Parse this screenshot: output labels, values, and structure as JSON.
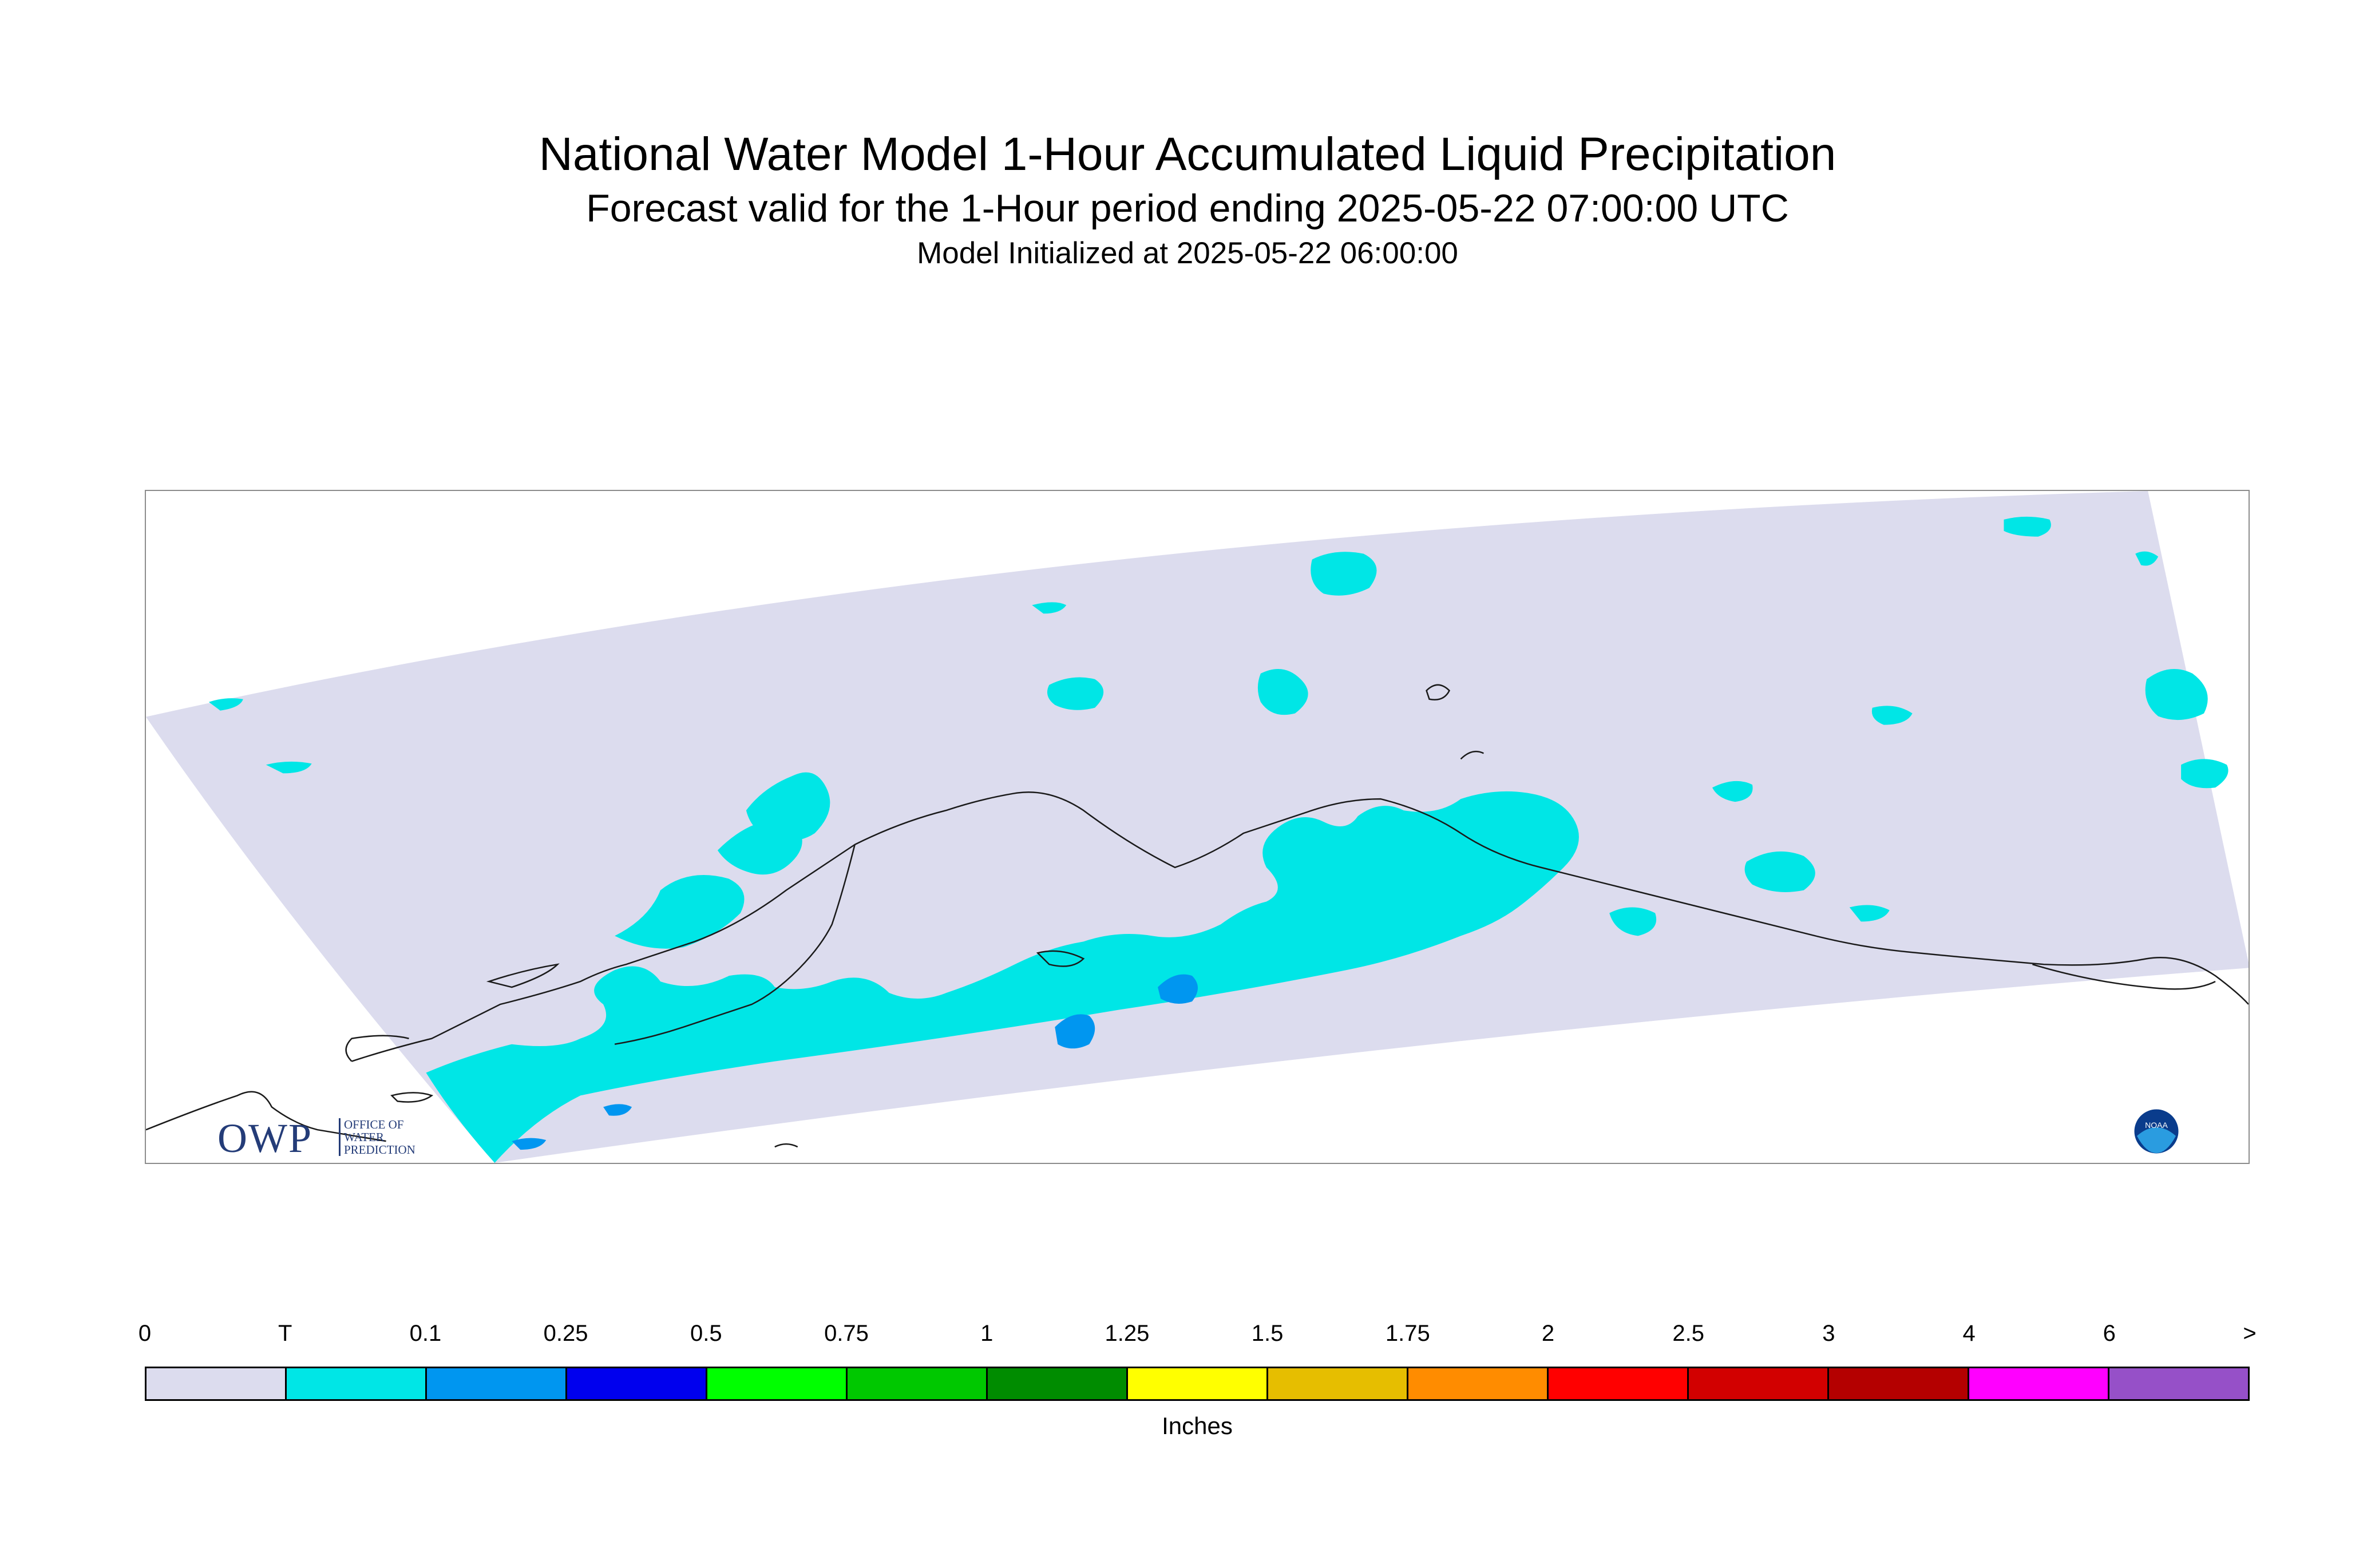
{
  "title": {
    "line1": "National Water Model 1-Hour Accumulated Liquid Precipitation",
    "line2": "Forecast valid for the 1-Hour period ending 2025-05-22 07:00:00 UTC",
    "line3": "Model Initialized at 2025-05-22 06:00:00"
  },
  "logos": {
    "owp_abbrev": "OWP",
    "owp_text": [
      "OFFICE OF",
      "WATER",
      "PREDICTION"
    ],
    "noaa_text": "NOAA"
  },
  "legend": {
    "units": "Inches",
    "tick_labels": [
      "0",
      "T",
      "0.1",
      "0.25",
      "0.5",
      "0.75",
      "1",
      "1.25",
      "1.5",
      "1.75",
      "2",
      "2.5",
      "3",
      "4",
      "6",
      ">"
    ],
    "colors": [
      "#dcdcee",
      "#00e6e6",
      "#0096f0",
      "#0000ee",
      "#00ff00",
      "#00c800",
      "#008c00",
      "#ffff00",
      "#e6be00",
      "#ff8c00",
      "#ff0000",
      "#d20000",
      "#b40000",
      "#ff00ff",
      "#9650c8"
    ]
  },
  "map": {
    "domain_color": "#dcdcee",
    "trace_color": "#00e6e6",
    "light_color": "#0096f0",
    "coast_color": "#1a1a1a"
  }
}
